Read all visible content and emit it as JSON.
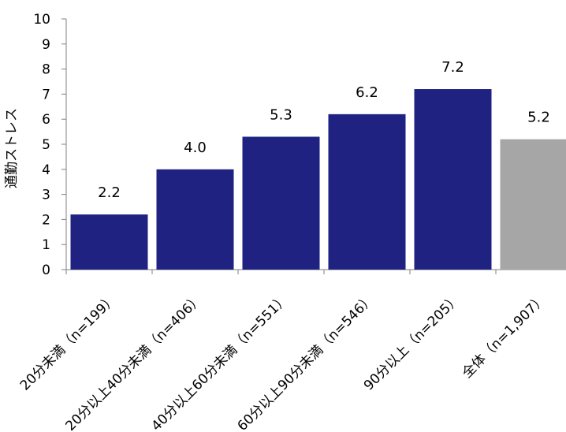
{
  "chart_data": {
    "type": "bar",
    "ylabel": "通勤ストレス",
    "ylim": [
      0,
      10
    ],
    "yticks": [
      0,
      1,
      2,
      3,
      4,
      5,
      6,
      7,
      8,
      9,
      10
    ],
    "categories": [
      "20分未満（n=199）",
      "20分以上40分未満（n=406）",
      "40分以上60分未満（n=551）",
      "60分以上90分未満（n=546）",
      "90分以上（n=205）",
      "全体（n=1,907）"
    ],
    "values": [
      2.2,
      4.0,
      5.3,
      6.2,
      7.2,
      5.2
    ],
    "value_labels": [
      "2.2",
      "4.0",
      "5.3",
      "6.2",
      "7.2",
      "5.2"
    ],
    "colors": [
      "#1f2280",
      "#1f2280",
      "#1f2280",
      "#1f2280",
      "#1f2280",
      "#a6a6a6"
    ],
    "axis_color": "#808080"
  }
}
